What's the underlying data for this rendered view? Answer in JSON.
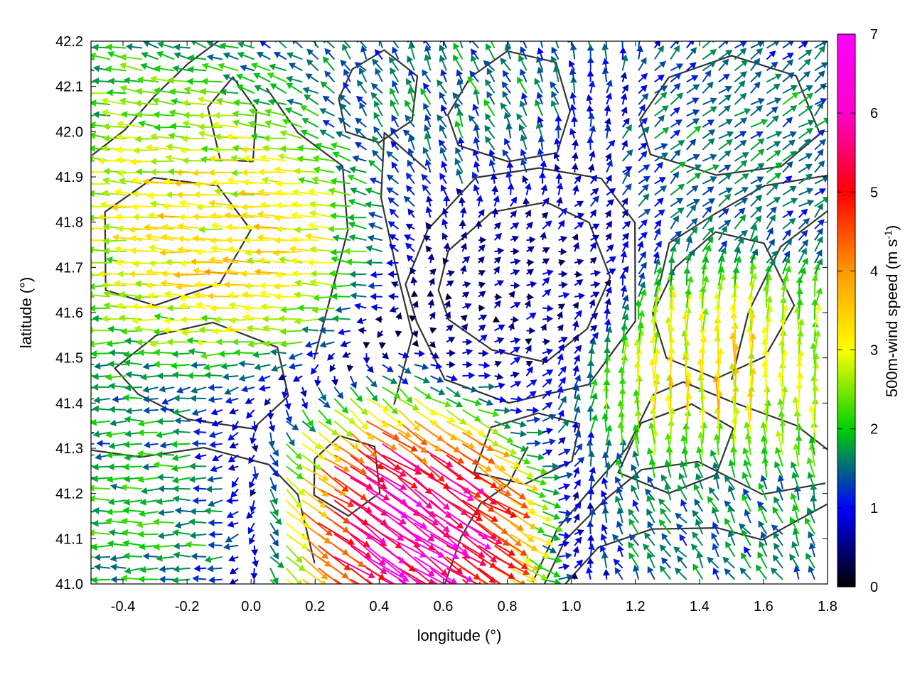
{
  "chart_data": {
    "type": "vector-field",
    "xlabel": "longitude (°)",
    "ylabel": "latitude (°)",
    "xlim": [
      -0.5,
      1.8
    ],
    "ylim": [
      41.0,
      42.2
    ],
    "x_ticks": [
      "-0.4",
      "-0.2",
      "0.0",
      "0.2",
      "0.4",
      "0.6",
      "0.8",
      "1.0",
      "1.2",
      "1.4",
      "1.6",
      "1.8"
    ],
    "x_tick_values": [
      -0.4,
      -0.2,
      0.0,
      0.2,
      0.4,
      0.6,
      0.8,
      1.0,
      1.2,
      1.4,
      1.6,
      1.8
    ],
    "y_ticks": [
      "41.0",
      "41.1",
      "41.2",
      "41.3",
      "41.4",
      "41.5",
      "41.6",
      "41.7",
      "41.8",
      "41.9",
      "42.0",
      "42.1",
      "42.2"
    ],
    "y_tick_values": [
      41.0,
      41.1,
      41.2,
      41.3,
      41.4,
      41.5,
      41.6,
      41.7,
      41.8,
      41.9,
      42.0,
      42.1,
      42.2
    ],
    "grid": true,
    "colorbar": {
      "label_main": "500m-wind speed (m s",
      "label_exp": "-1",
      "label_close": ")",
      "range": [
        0,
        7
      ],
      "ticks": [
        "0",
        "1",
        "2",
        "3",
        "4",
        "5",
        "6",
        "7"
      ],
      "stops": [
        "#000000",
        "#0000ff",
        "#00d000",
        "#ffff00",
        "#ff9900",
        "#ff0000",
        "#ff00ff"
      ]
    },
    "regions": [
      {
        "x": 0.0,
        "y": 41.75,
        "u": -3.8,
        "v": 0.2,
        "note": "strong westward flow west side"
      },
      {
        "x": -0.3,
        "y": 41.15,
        "u": -2.2,
        "v": 0.0
      },
      {
        "x": 0.45,
        "y": 41.15,
        "u": 5.6,
        "v": -3.8,
        "note": "magenta core"
      },
      {
        "x": 0.9,
        "y": 41.65,
        "u": 0.6,
        "v": 0.3,
        "note": "weak blue calm zone"
      },
      {
        "x": 1.4,
        "y": 41.1,
        "u": -1.0,
        "v": 1.5
      },
      {
        "x": 1.4,
        "y": 41.45,
        "u": 0.0,
        "v": 3.8
      },
      {
        "x": 0.7,
        "y": 42.1,
        "u": -0.8,
        "v": 1.6
      },
      {
        "x": 1.5,
        "y": 41.95,
        "u": 1.5,
        "v": 1.0
      }
    ]
  }
}
